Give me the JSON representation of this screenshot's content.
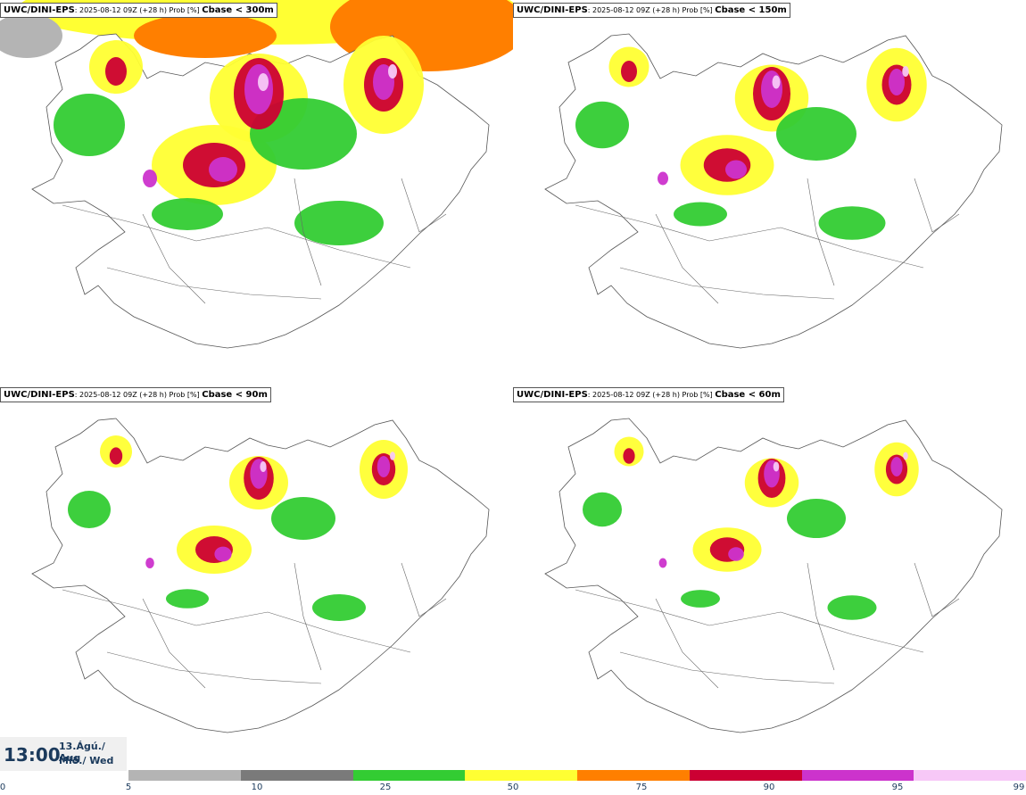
{
  "panels": [
    {
      "model": "UWC/DINI-EPS",
      "run": ": 2025-08-12 09Z (+28 h) Prob [%] ",
      "variable": "Cbase < 300m",
      "intensity": 1.0
    },
    {
      "model": "UWC/DINI-EPS",
      "run": ": 2025-08-12 09Z (+28 h) Prob [%] ",
      "variable": "Cbase < 150m",
      "intensity": 0.75
    },
    {
      "model": "UWC/DINI-EPS",
      "run": ": 2025-08-12 09Z (+28 h) Prob [%] ",
      "variable": "Cbase < 90m",
      "intensity": 0.6
    },
    {
      "model": "UWC/DINI-EPS",
      "run": ": 2025-08-12 09Z (+28 h) Prob [%] ",
      "variable": "Cbase < 60m",
      "intensity": 0.55
    }
  ],
  "valid_time": {
    "time": "13:00",
    "date_line1": "13.Ágú./ Aug",
    "date_line2": "Mið./ Wed"
  },
  "colorbar": {
    "ticks": [
      "0",
      "5",
      "10",
      "25",
      "50",
      "75",
      "90",
      "95",
      "99"
    ],
    "colors": [
      "#b4b4b4",
      "#7a7a7a",
      "#33cc33",
      "#ffff33",
      "#ff7f00",
      "#cc0033",
      "#cc33cc",
      "#f7c8f7"
    ]
  }
}
